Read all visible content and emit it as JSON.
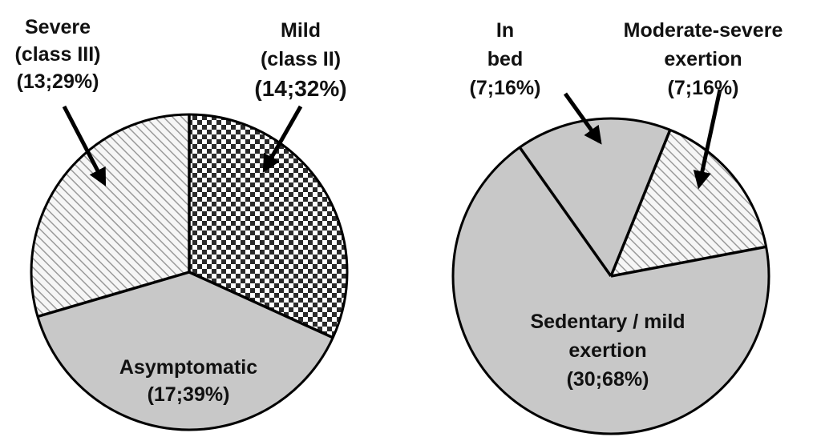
{
  "chart_data": [
    {
      "type": "pie",
      "title": "",
      "slices": [
        {
          "id": "mild",
          "lines": [
            "Mild",
            "(class II)",
            "(14;32%)"
          ],
          "count": 14,
          "percent": 32,
          "fill": "checker"
        },
        {
          "id": "asymptomatic",
          "lines": [
            "Asymptomatic",
            "(17;39%)"
          ],
          "count": 17,
          "percent": 39,
          "fill": "solid"
        },
        {
          "id": "severe",
          "lines": [
            "Severe",
            "(class III)",
            "(13;29%)"
          ],
          "count": 13,
          "percent": 29,
          "fill": "hatch"
        }
      ]
    },
    {
      "type": "pie",
      "title": "",
      "slices": [
        {
          "id": "moderate-severe",
          "lines": [
            "Moderate-severe",
            "exertion",
            "(7;16%)"
          ],
          "count": 7,
          "percent": 16,
          "fill": "hatch"
        },
        {
          "id": "sedentary-mild",
          "lines": [
            "Sedentary / mild",
            "exertion",
            "(30;68%)"
          ],
          "count": 30,
          "percent": 68,
          "fill": "solid"
        },
        {
          "id": "in-bed",
          "lines": [
            "In",
            "bed",
            "(7;16%)"
          ],
          "count": 7,
          "percent": 16,
          "fill": "solid",
          "divider": "dotted"
        }
      ]
    }
  ],
  "colors": {
    "solid": "#c8c8c8",
    "hatch_line": "#9a9a9a",
    "hatch_bg": "#f6f6f6",
    "checker_dark": "#2a2a2a",
    "checker_light": "#ffffff",
    "outline": "#000000"
  }
}
